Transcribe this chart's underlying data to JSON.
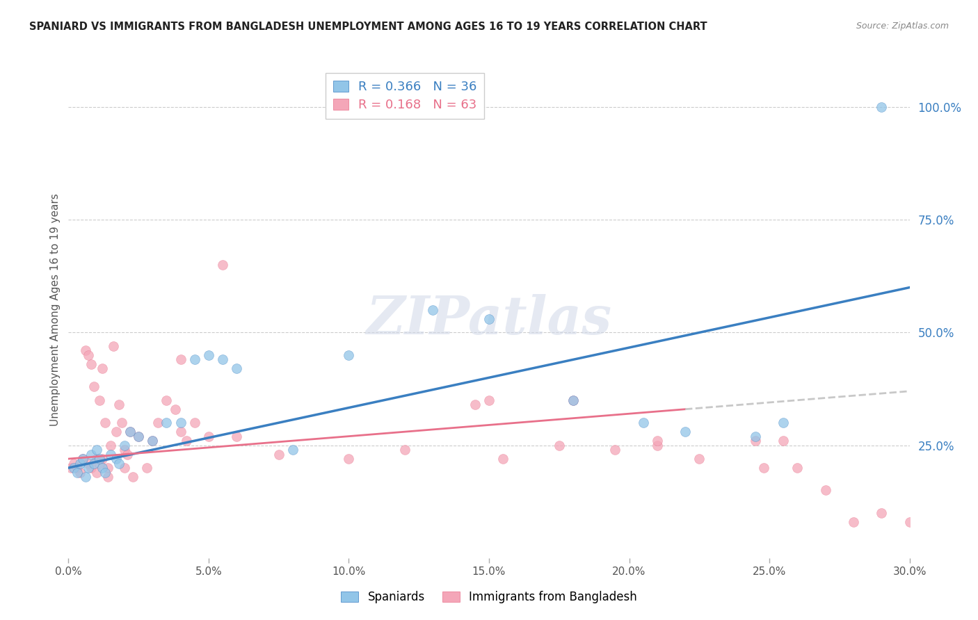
{
  "title": "SPANIARD VS IMMIGRANTS FROM BANGLADESH UNEMPLOYMENT AMONG AGES 16 TO 19 YEARS CORRELATION CHART",
  "source": "Source: ZipAtlas.com",
  "ylabel": "Unemployment Among Ages 16 to 19 years",
  "xlabel_ticks": [
    "0.0%",
    "5.0%",
    "10.0%",
    "15.0%",
    "20.0%",
    "25.0%",
    "30.0%"
  ],
  "xlabel_vals": [
    0.0,
    5.0,
    10.0,
    15.0,
    20.0,
    25.0,
    30.0
  ],
  "yright_ticks": [
    "100.0%",
    "75.0%",
    "50.0%",
    "25.0%"
  ],
  "yright_vals": [
    100.0,
    75.0,
    50.0,
    25.0
  ],
  "legend_blue_r": "R = 0.366",
  "legend_blue_n": "N = 36",
  "legend_pink_r": "R = 0.168",
  "legend_pink_n": "N = 63",
  "color_blue": "#92c5e8",
  "color_pink": "#f4a6b8",
  "color_blue_line": "#3a7fc1",
  "color_pink_line": "#e8708a",
  "color_dashed": "#c8c8c8",
  "watermark": "ZIPatlas",
  "blue_line_x0": 0.0,
  "blue_line_y0": 20.0,
  "blue_line_x1": 30.0,
  "blue_line_y1": 60.0,
  "pink_line_x0": 0.0,
  "pink_line_y0": 22.0,
  "pink_line_x1": 30.0,
  "pink_line_y1": 37.0,
  "pink_solid_end": 22.0,
  "blue_scatter_x": [
    0.2,
    0.3,
    0.4,
    0.5,
    0.6,
    0.7,
    0.8,
    0.9,
    1.0,
    1.1,
    1.2,
    1.3,
    1.5,
    1.7,
    1.8,
    2.0,
    2.2,
    2.5,
    3.0,
    3.5,
    4.0,
    4.5,
    5.0,
    5.5,
    6.0,
    8.0,
    10.0,
    13.0,
    14.5,
    15.0,
    18.0,
    20.5,
    22.0,
    24.5,
    25.5,
    29.0
  ],
  "blue_scatter_y": [
    20.0,
    19.0,
    21.0,
    22.0,
    18.0,
    20.0,
    23.0,
    21.0,
    24.0,
    22.0,
    20.0,
    19.0,
    23.0,
    22.0,
    21.0,
    25.0,
    28.0,
    27.0,
    26.0,
    30.0,
    30.0,
    44.0,
    45.0,
    44.0,
    42.0,
    24.0,
    45.0,
    55.0,
    100.0,
    53.0,
    35.0,
    30.0,
    28.0,
    27.0,
    30.0,
    100.0
  ],
  "pink_scatter_x": [
    0.1,
    0.2,
    0.3,
    0.4,
    0.5,
    0.6,
    0.7,
    0.7,
    0.8,
    0.8,
    0.9,
    1.0,
    1.0,
    1.1,
    1.1,
    1.2,
    1.2,
    1.3,
    1.4,
    1.4,
    1.5,
    1.6,
    1.7,
    1.8,
    1.9,
    2.0,
    2.0,
    2.1,
    2.2,
    2.3,
    2.5,
    2.8,
    3.0,
    3.2,
    3.5,
    3.8,
    4.0,
    4.0,
    4.2,
    4.5,
    5.0,
    5.5,
    6.0,
    7.5,
    10.0,
    12.0,
    14.5,
    15.0,
    15.5,
    17.5,
    18.0,
    19.5,
    21.0,
    21.0,
    22.5,
    24.5,
    24.8,
    25.5,
    26.0,
    27.0,
    28.0,
    29.0,
    30.0
  ],
  "pink_scatter_y": [
    20.0,
    21.0,
    20.0,
    19.0,
    22.0,
    46.0,
    45.0,
    21.0,
    43.0,
    20.0,
    38.0,
    19.0,
    22.0,
    35.0,
    21.0,
    22.0,
    42.0,
    30.0,
    20.0,
    18.0,
    25.0,
    47.0,
    28.0,
    34.0,
    30.0,
    24.0,
    20.0,
    23.0,
    28.0,
    18.0,
    27.0,
    20.0,
    26.0,
    30.0,
    35.0,
    33.0,
    44.0,
    28.0,
    26.0,
    30.0,
    27.0,
    65.0,
    27.0,
    23.0,
    22.0,
    24.0,
    34.0,
    35.0,
    22.0,
    25.0,
    35.0,
    24.0,
    25.0,
    26.0,
    22.0,
    26.0,
    20.0,
    26.0,
    20.0,
    15.0,
    8.0,
    10.0,
    8.0
  ],
  "xmin": 0.0,
  "xmax": 30.0,
  "ymin": 0.0,
  "ymax": 110.0
}
